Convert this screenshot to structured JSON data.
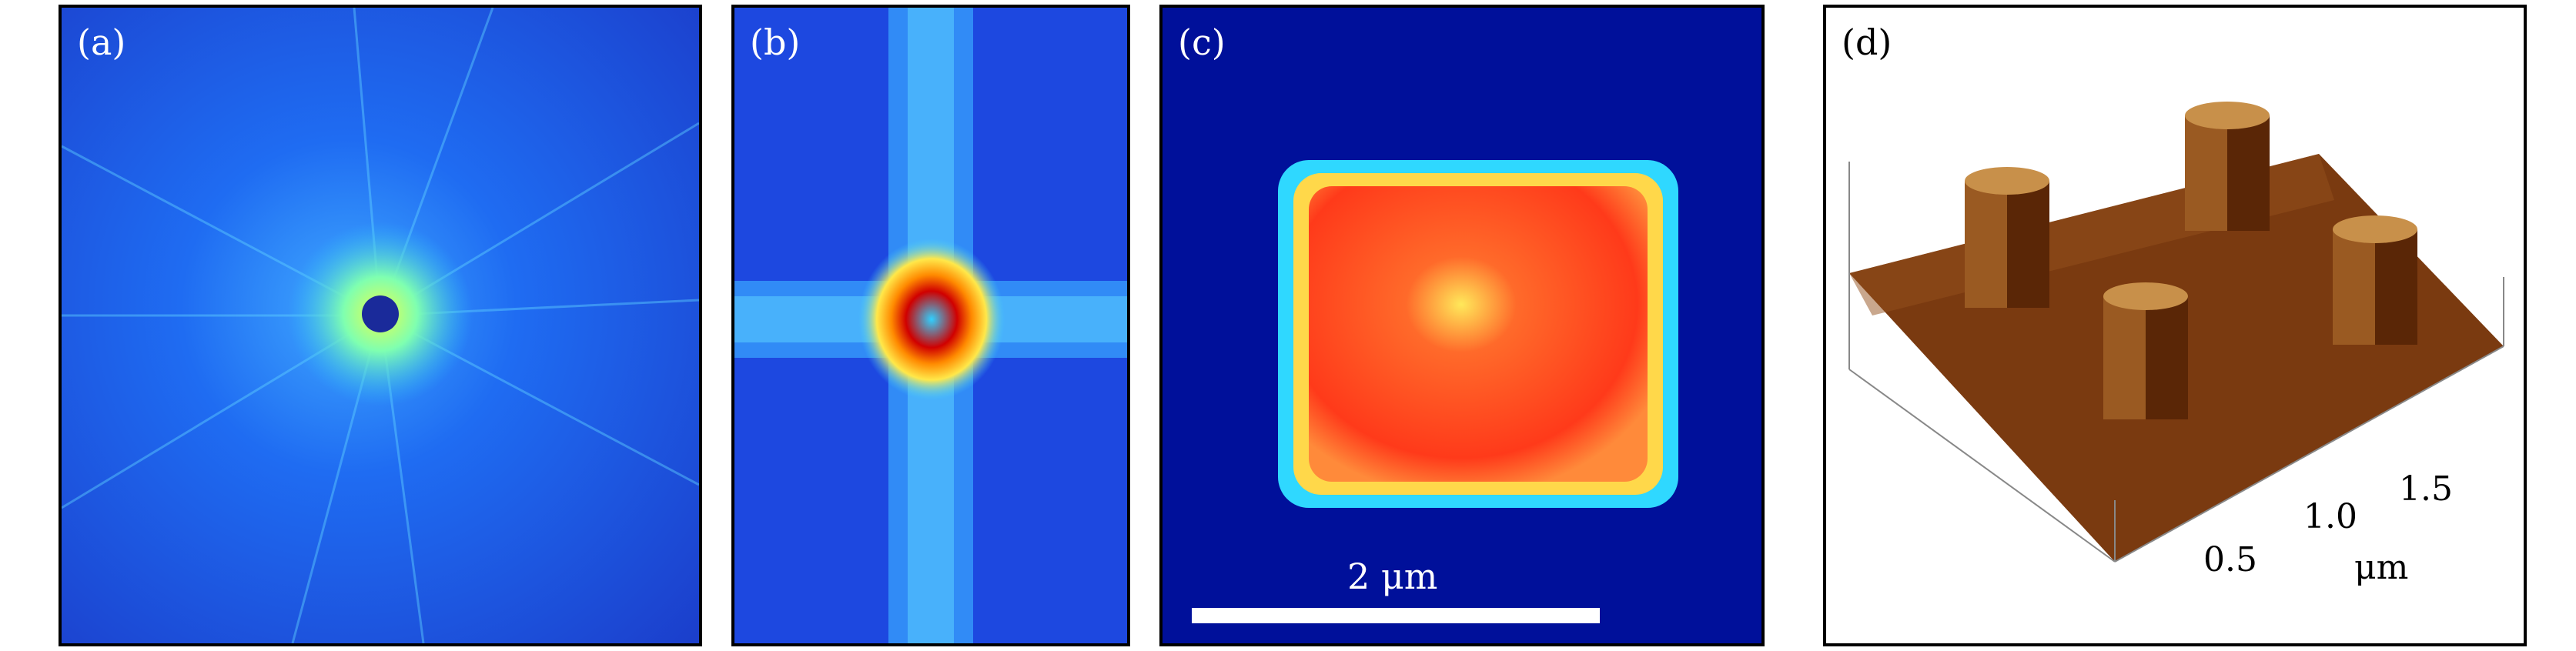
{
  "panels": [
    {
      "label": "(a)"
    },
    {
      "label": "(b)"
    },
    {
      "label": "(c)",
      "scale_bar_label": "2 μm"
    },
    {
      "label": "(d)",
      "axis_ticks": [
        "0.5",
        "1.0",
        "1.5"
      ],
      "axis_unit": "μm"
    }
  ]
}
